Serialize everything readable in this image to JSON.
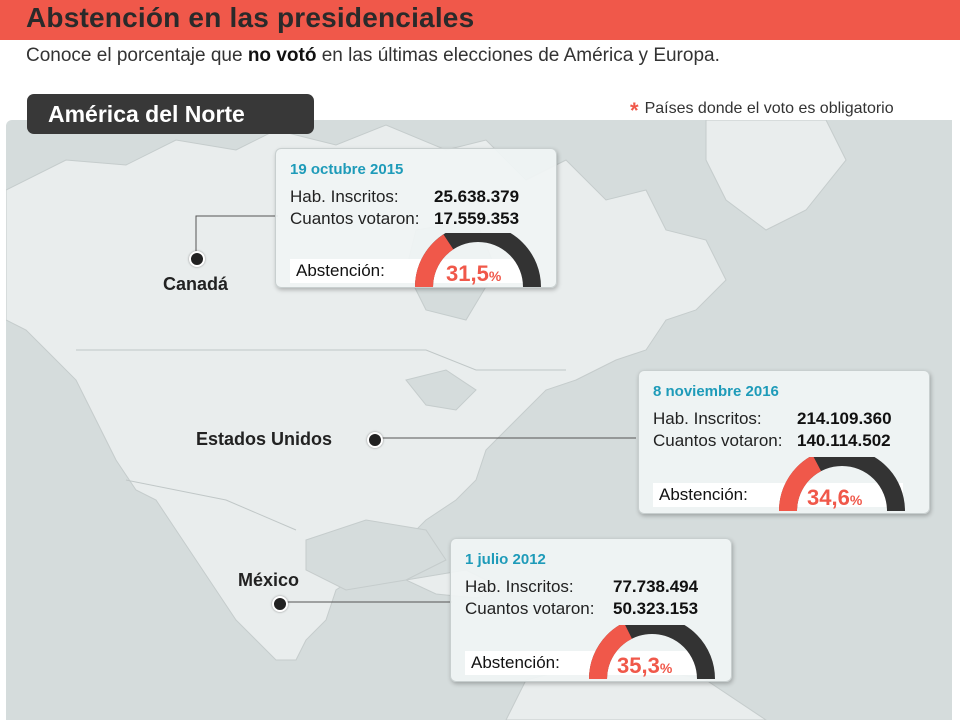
{
  "header": {
    "title": "Abstención en las presidenciales",
    "subtitle_pre": "Conoce el porcentaje que ",
    "subtitle_bold": "no votó",
    "subtitle_post": " en las últimas elecciones de América y Europa."
  },
  "region": {
    "label": "América del Norte"
  },
  "legend": {
    "star": "*",
    "text": "Países donde el voto es obligatorio"
  },
  "colors": {
    "accent": "#f0584a",
    "date": "#1e9bb9",
    "gauge_dark": "#333333",
    "map_land": "#e9eded",
    "map_water": "#d5dcdc"
  },
  "countries": [
    {
      "name": "Canadá",
      "date": "19 octubre 2015",
      "registered_label": "Hab. Inscritos:",
      "registered": "25.638.379",
      "voted_label": "Cuantos votaron:",
      "voted": "17.559.353",
      "abstention_label": "Abstención:",
      "abstention_value": "31,5",
      "abstention_pct": 31.5,
      "pct_symbol": "%"
    },
    {
      "name": "Estados Unidos",
      "date": "8 noviembre 2016",
      "registered_label": "Hab. Inscritos:",
      "registered": "214.109.360",
      "voted_label": "Cuantos votaron:",
      "voted": "140.114.502",
      "abstention_label": "Abstención:",
      "abstention_value": "34,6",
      "abstention_pct": 34.6,
      "pct_symbol": "%"
    },
    {
      "name": "México",
      "date": "1 julio 2012",
      "registered_label": "Hab. Inscritos:",
      "registered": "77.738.494",
      "voted_label": "Cuantos votaron:",
      "voted": "50.323.153",
      "abstention_label": "Abstención:",
      "abstention_value": "35,3",
      "abstention_pct": 35.3,
      "pct_symbol": "%"
    }
  ]
}
